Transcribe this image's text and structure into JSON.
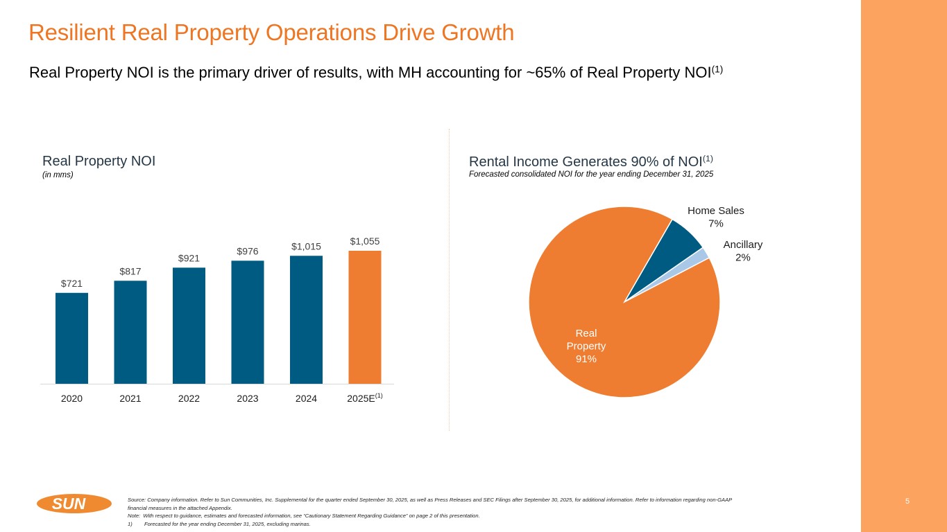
{
  "slide": {
    "title": "Resilient Real Property Operations Drive Growth",
    "subtitle": "Real Property NOI is the primary driver of results, with MH accounting for ~65% of Real Property NOI",
    "subtitle_footnote": "(1)",
    "page_number": "5",
    "logo_text": "SUN",
    "colors": {
      "title": "#ee7623",
      "side_band": "#fda360",
      "bar_primary": "#005b82",
      "bar_highlight": "#ee7d31",
      "pie_light": "#a9c8e8"
    }
  },
  "bar_panel": {
    "title": "Real Property NOI",
    "subtitle": "(in mms)"
  },
  "pie_panel": {
    "title": "Rental Income Generates 90% of NOI",
    "title_footnote": "(1)",
    "subtitle": "Forecasted consolidated NOI for the year ending December 31, 2025"
  },
  "chart_data": [
    {
      "type": "bar",
      "title": "Real Property NOI",
      "subtitle": "(in mms)",
      "categories": [
        "2020",
        "2021",
        "2022",
        "2023",
        "2024",
        "2025E"
      ],
      "category_footnotes": [
        "",
        "",
        "",
        "",
        "",
        "(1)"
      ],
      "values": [
        721,
        817,
        921,
        976,
        1015,
        1055
      ],
      "data_labels": [
        "$721",
        "$817",
        "$921",
        "$976",
        "$1,015",
        "$1,055"
      ],
      "highlight_index": 5,
      "xlabel": "",
      "ylabel": "",
      "ylim": [
        0,
        1055
      ],
      "grid": false
    },
    {
      "type": "pie",
      "title": "Rental Income Generates 90% of NOI",
      "subtitle": "Forecasted consolidated NOI for the year ending December 31, 2025",
      "slices": [
        {
          "label": "Home Sales",
          "value": 7,
          "display": "7%",
          "color": "#005b82"
        },
        {
          "label": "Ancillary",
          "value": 2,
          "display": "2%",
          "color": "#a9c8e8"
        },
        {
          "label": "Real Property",
          "value": 91,
          "display": "91%",
          "color": "#ee7d31"
        }
      ]
    }
  ],
  "footnotes": {
    "source": "Source: Company information. Refer to Sun Communities, Inc. Supplemental for the quarter ended September 30, 2025, as well as Press Releases and SEC Filings after September 30, 2025, for additional information. Refer to information regarding non-GAAP",
    "source_cont": "financial measures in the attached Appendix.",
    "note": "Note:  With respect to guidance, estimates and forecasted information, see “Cautionary Statement Regarding Guidance” on page 2 of this presentation.",
    "fn1_label": "1)",
    "fn1": "Forecasted for the year ending December 31, 2025, excluding marinas."
  }
}
